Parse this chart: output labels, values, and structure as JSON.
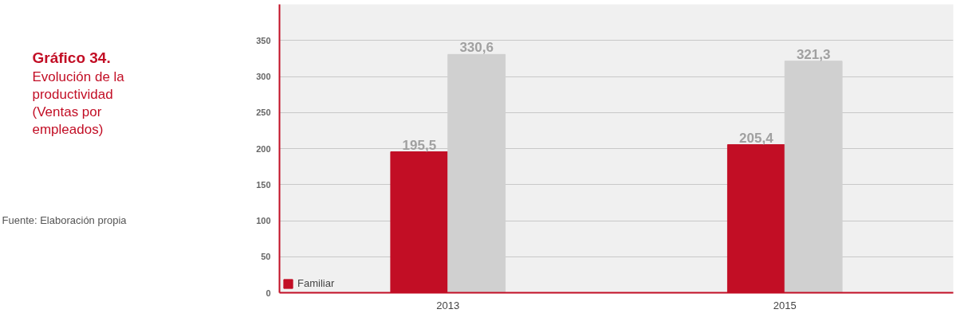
{
  "chart_data": {
    "type": "bar",
    "title": "Gráfico 34.",
    "subtitle": "Evolución de la productividad (Ventas por empleados)",
    "annotations": [
      "Fuente: Elaboración propia"
    ],
    "categories": [
      "2013",
      "2015"
    ],
    "series": [
      {
        "name": "Familiar",
        "color": "#c20e25",
        "values": [
          195.5,
          205.4
        ],
        "value_labels": [
          "195,5",
          "205,4"
        ]
      },
      {
        "color": "#d0d0d0",
        "values": [
          330.6,
          321.3
        ],
        "value_labels": [
          "330,6",
          "321,3"
        ]
      }
    ],
    "ylim": [
      0,
      400
    ],
    "yticks": [
      0,
      50,
      100,
      150,
      200,
      250,
      300,
      350
    ],
    "grid": "y",
    "legend": "bottom left"
  }
}
